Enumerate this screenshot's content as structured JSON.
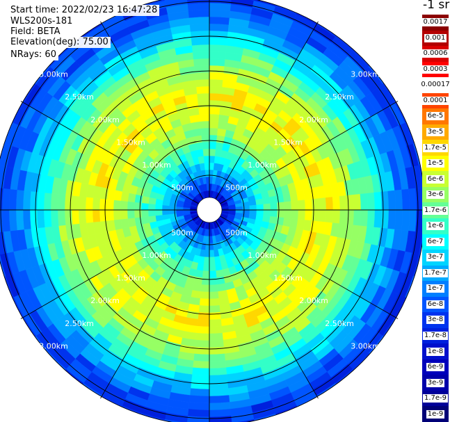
{
  "info": {
    "start_time": "Start time: 2022/02/23 16:47:28",
    "station": "WLS200s-181",
    "field": "Field: BETA",
    "elevation": "Elevation(deg): 75.00",
    "nrays": "NRays: 60"
  },
  "colorbar": {
    "unit_label": "-1 sr",
    "labels": [
      "0.0017",
      "0.001",
      "0.0006",
      "0.0003",
      "0.00017",
      "0.0001",
      "6e-5",
      "3e-5",
      "1.7e-5",
      "1e-5",
      "6e-6",
      "3e-6",
      "1.7e-6",
      "1e-6",
      "6e-7",
      "3e-7",
      "1.7e-7",
      "1e-7",
      "6e-8",
      "3e-8",
      "1.7e-8",
      "1e-8",
      "6e-9",
      "3e-9",
      "1.7e-9",
      "1e-9"
    ],
    "colors": [
      "#8b0000",
      "#b30000",
      "#d90000",
      "#ff0000",
      "#ffffff",
      "#ff4400",
      "#ff7700",
      "#ffaa00",
      "#ffd700",
      "#ffff00",
      "#c8ff32",
      "#96ff64",
      "#64ff96",
      "#32ffc8",
      "#00ffff",
      "#00d4ff",
      "#00aaff",
      "#007fff",
      "#0055ff",
      "#0033ee",
      "#0020dd",
      "#0010cc",
      "#0000bb",
      "#0000aa",
      "#000099",
      "#000077"
    ]
  },
  "chart_data": {
    "type": "heatmap",
    "projection": "polar-ppi",
    "range_labels": [
      "500m",
      "1.00km",
      "1.50km",
      "2.00km",
      "2.50km",
      "3.00km"
    ],
    "range_rings_m": [
      500,
      1000,
      1500,
      2000,
      2500,
      3000
    ],
    "spoke_angles_deg": [
      0,
      30,
      60,
      90,
      120,
      150,
      180,
      210,
      240,
      270,
      300,
      330
    ],
    "max_range_m": 3100,
    "n_rays": 60,
    "radial_color_profile": [
      {
        "range_m": 250,
        "value": "1e-8"
      },
      {
        "range_m": 350,
        "value": "6e-8"
      },
      {
        "range_m": 550,
        "value": "1.7e-7"
      },
      {
        "range_m": 750,
        "value": "6e-7"
      },
      {
        "range_m": 1000,
        "value": "1.7e-6"
      },
      {
        "range_m": 1300,
        "value": "6e-6"
      },
      {
        "range_m": 1600,
        "value": "1e-5"
      },
      {
        "range_m": 1900,
        "value": "6e-6"
      },
      {
        "range_m": 2200,
        "value": "1.7e-6"
      },
      {
        "range_m": 2500,
        "value": "3e-7"
      },
      {
        "range_m": 2750,
        "value": "1e-7"
      },
      {
        "range_m": 3000,
        "value": "3e-8"
      }
    ]
  }
}
